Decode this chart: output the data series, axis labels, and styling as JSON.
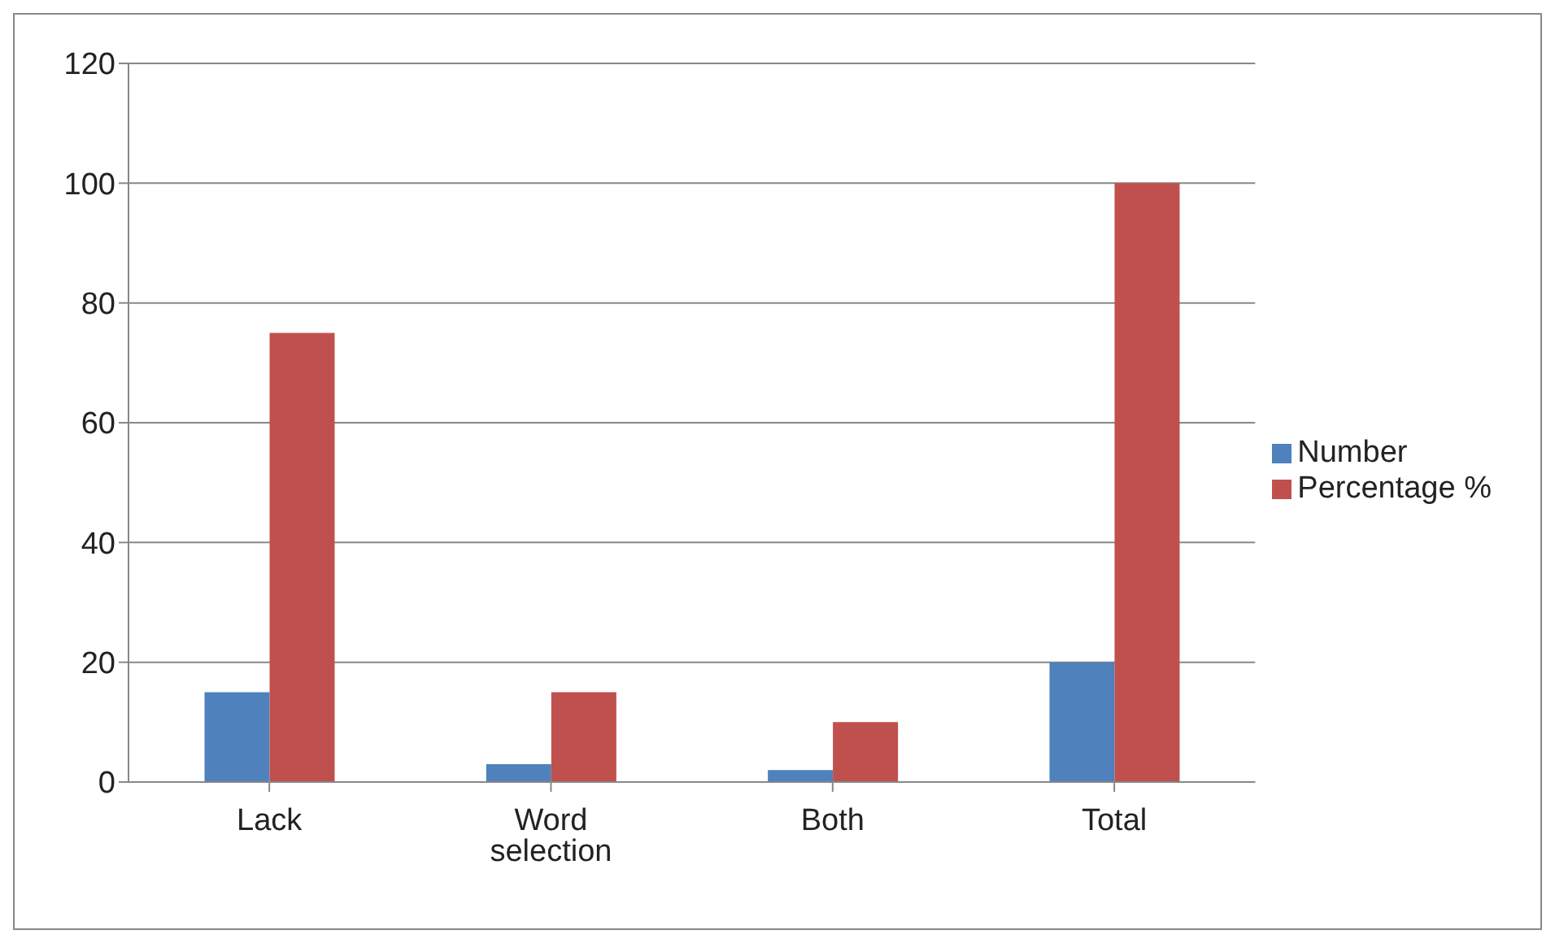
{
  "chart_data": {
    "type": "bar",
    "categories": [
      "Lack",
      "Word selection",
      "Both",
      "Total"
    ],
    "series": [
      {
        "name": "Number",
        "color": "#4f81bd",
        "values": [
          15,
          3,
          2,
          20
        ]
      },
      {
        "name": "Percentage %",
        "color": "#c0504d",
        "values": [
          75,
          15,
          10,
          100
        ]
      }
    ],
    "ylim": [
      0,
      120
    ],
    "yticks": [
      0,
      20,
      40,
      60,
      80,
      100,
      120
    ],
    "grid": "y",
    "legend": "right"
  }
}
